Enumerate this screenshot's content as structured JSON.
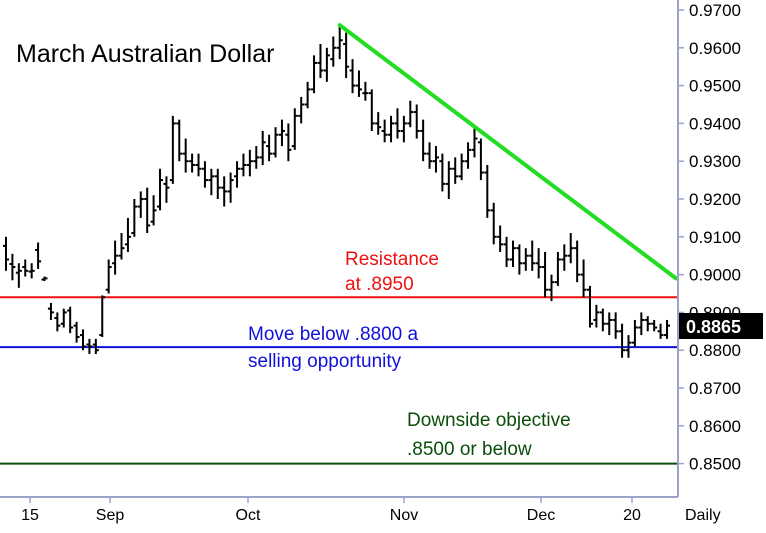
{
  "chart_data": {
    "type": "ohlc",
    "title": "March Australian Dollar",
    "period_label": "Daily",
    "ylim": [
      0.8455,
      0.97
    ],
    "y_ticks": [
      "0.9700",
      "0.9600",
      "0.9500",
      "0.9400",
      "0.9300",
      "0.9200",
      "0.9100",
      "0.9000",
      "0.8900",
      "0.8800",
      "0.8700",
      "0.8600",
      "0.8500"
    ],
    "x_ticks": [
      "15",
      "Sep",
      "Oct",
      "Nov",
      "Dec",
      "20"
    ],
    "last_price": "0.8865",
    "grid": false,
    "colors": {
      "bars": "#000000",
      "axis": "#9aa3c8",
      "trendline": "#22dd22",
      "resistance": "#ee1111",
      "support": "#1111dd",
      "objective": "#0b4d0b",
      "price_box_bg": "#000000",
      "price_box_fg": "#ffffff"
    },
    "trendline": {
      "from": 0.966,
      "to": 0.899
    },
    "levels": [
      {
        "name": "resistance",
        "value": 0.894
      },
      {
        "name": "support",
        "value": 0.8808
      },
      {
        "name": "objective",
        "value": 0.85
      }
    ],
    "annotations": [
      {
        "name": "resistance-note",
        "lines": [
          "Resistance",
          "at .8950"
        ],
        "color": "#ee1111"
      },
      {
        "name": "support-note",
        "lines": [
          "Move below .8800 a",
          "selling opportunity"
        ],
        "color": "#1111dd"
      },
      {
        "name": "objective-note",
        "lines": [
          "Downside objective",
          ".8500 or below"
        ],
        "color": "#0b4d0b"
      }
    ],
    "bars": [
      [
        0.9076,
        0.91,
        0.901,
        0.904
      ],
      [
        0.9028,
        0.9055,
        0.8985,
        0.902
      ],
      [
        0.9005,
        0.903,
        0.8965,
        0.901
      ],
      [
        0.902,
        0.904,
        0.8995,
        0.901
      ],
      [
        0.9008,
        0.903,
        0.899,
        0.901
      ],
      [
        0.9065,
        0.9085,
        0.9015,
        0.9035
      ],
      [
        0.8987,
        0.8995,
        0.8983,
        0.899
      ],
      [
        0.891,
        0.8925,
        0.888,
        0.89
      ],
      [
        0.8885,
        0.89,
        0.885,
        0.8865
      ],
      [
        0.887,
        0.891,
        0.886,
        0.89
      ],
      [
        0.8905,
        0.8915,
        0.8845,
        0.886
      ],
      [
        0.8865,
        0.8875,
        0.882,
        0.8835
      ],
      [
        0.884,
        0.8855,
        0.88,
        0.881
      ],
      [
        0.8815,
        0.883,
        0.879,
        0.881
      ],
      [
        0.8815,
        0.883,
        0.879,
        0.88
      ],
      [
        0.884,
        0.8945,
        0.8835,
        0.894
      ],
      [
        0.896,
        0.904,
        0.895,
        0.902
      ],
      [
        0.903,
        0.909,
        0.9,
        0.905
      ],
      [
        0.905,
        0.911,
        0.904,
        0.907
      ],
      [
        0.908,
        0.915,
        0.906,
        0.91
      ],
      [
        0.911,
        0.92,
        0.91,
        0.918
      ],
      [
        0.918,
        0.922,
        0.915,
        0.92
      ],
      [
        0.92,
        0.923,
        0.911,
        0.913
      ],
      [
        0.914,
        0.921,
        0.913,
        0.917
      ],
      [
        0.918,
        0.928,
        0.917,
        0.925
      ],
      [
        0.924,
        0.926,
        0.919,
        0.923
      ],
      [
        0.925,
        0.942,
        0.924,
        0.94
      ],
      [
        0.94,
        0.941,
        0.93,
        0.932
      ],
      [
        0.932,
        0.936,
        0.927,
        0.93
      ],
      [
        0.93,
        0.932,
        0.927,
        0.929
      ],
      [
        0.929,
        0.932,
        0.926,
        0.928
      ],
      [
        0.928,
        0.93,
        0.923,
        0.925
      ],
      [
        0.925,
        0.928,
        0.921,
        0.926
      ],
      [
        0.926,
        0.928,
        0.92,
        0.923
      ],
      [
        0.923,
        0.926,
        0.918,
        0.922
      ],
      [
        0.922,
        0.927,
        0.919,
        0.925
      ],
      [
        0.926,
        0.93,
        0.923,
        0.928
      ],
      [
        0.928,
        0.932,
        0.926,
        0.929
      ],
      [
        0.929,
        0.933,
        0.926,
        0.93
      ],
      [
        0.93,
        0.934,
        0.928,
        0.931
      ],
      [
        0.931,
        0.938,
        0.929,
        0.935
      ],
      [
        0.934,
        0.937,
        0.93,
        0.932
      ],
      [
        0.932,
        0.939,
        0.931,
        0.937
      ],
      [
        0.937,
        0.941,
        0.934,
        0.938
      ],
      [
        0.937,
        0.94,
        0.93,
        0.933
      ],
      [
        0.934,
        0.944,
        0.933,
        0.942
      ],
      [
        0.942,
        0.947,
        0.94,
        0.945
      ],
      [
        0.945,
        0.951,
        0.944,
        0.949
      ],
      [
        0.949,
        0.958,
        0.948,
        0.956
      ],
      [
        0.956,
        0.961,
        0.952,
        0.954
      ],
      [
        0.954,
        0.96,
        0.951,
        0.958
      ],
      [
        0.957,
        0.963,
        0.955,
        0.96
      ],
      [
        0.96,
        0.966,
        0.957,
        0.962
      ],
      [
        0.961,
        0.964,
        0.952,
        0.955
      ],
      [
        0.954,
        0.957,
        0.948,
        0.95
      ],
      [
        0.95,
        0.954,
        0.947,
        0.949
      ],
      [
        0.948,
        0.951,
        0.946,
        0.948
      ],
      [
        0.948,
        0.949,
        0.938,
        0.94
      ],
      [
        0.94,
        0.943,
        0.937,
        0.939
      ],
      [
        0.938,
        0.941,
        0.935,
        0.937
      ],
      [
        0.937,
        0.942,
        0.935,
        0.94
      ],
      [
        0.94,
        0.944,
        0.936,
        0.938
      ],
      [
        0.938,
        0.942,
        0.935,
        0.94
      ],
      [
        0.94,
        0.946,
        0.939,
        0.943
      ],
      [
        0.943,
        0.945,
        0.936,
        0.938
      ],
      [
        0.938,
        0.941,
        0.93,
        0.932
      ],
      [
        0.932,
        0.935,
        0.928,
        0.93
      ],
      [
        0.93,
        0.934,
        0.927,
        0.931
      ],
      [
        0.93,
        0.932,
        0.922,
        0.924
      ],
      [
        0.924,
        0.93,
        0.92,
        0.928
      ],
      [
        0.928,
        0.931,
        0.924,
        0.926
      ],
      [
        0.926,
        0.932,
        0.925,
        0.93
      ],
      [
        0.93,
        0.935,
        0.928,
        0.933
      ],
      [
        0.933,
        0.939,
        0.931,
        0.936
      ],
      [
        0.935,
        0.936,
        0.925,
        0.927
      ],
      [
        0.927,
        0.929,
        0.915,
        0.917
      ],
      [
        0.917,
        0.919,
        0.908,
        0.91
      ],
      [
        0.91,
        0.913,
        0.906,
        0.908
      ],
      [
        0.908,
        0.91,
        0.902,
        0.904
      ],
      [
        0.904,
        0.909,
        0.902,
        0.907
      ],
      [
        0.907,
        0.908,
        0.9,
        0.903
      ],
      [
        0.903,
        0.907,
        0.901,
        0.905
      ],
      [
        0.905,
        0.909,
        0.901,
        0.903
      ],
      [
        0.903,
        0.907,
        0.899,
        0.902
      ],
      [
        0.902,
        0.906,
        0.894,
        0.896
      ],
      [
        0.896,
        0.9,
        0.893,
        0.898
      ],
      [
        0.898,
        0.906,
        0.897,
        0.904
      ],
      [
        0.904,
        0.908,
        0.901,
        0.905
      ],
      [
        0.905,
        0.911,
        0.903,
        0.907
      ],
      [
        0.907,
        0.909,
        0.898,
        0.9
      ],
      [
        0.9,
        0.904,
        0.894,
        0.896
      ],
      [
        0.896,
        0.897,
        0.886,
        0.887
      ],
      [
        0.888,
        0.892,
        0.886,
        0.89
      ],
      [
        0.89,
        0.891,
        0.885,
        0.887
      ],
      [
        0.887,
        0.89,
        0.884,
        0.888
      ],
      [
        0.888,
        0.89,
        0.883,
        0.885
      ],
      [
        0.885,
        0.887,
        0.878,
        0.88
      ],
      [
        0.88,
        0.884,
        0.878,
        0.882
      ],
      [
        0.882,
        0.888,
        0.881,
        0.886
      ],
      [
        0.886,
        0.89,
        0.884,
        0.888
      ],
      [
        0.888,
        0.889,
        0.885,
        0.887
      ],
      [
        0.887,
        0.888,
        0.885,
        0.886
      ],
      [
        0.885,
        0.887,
        0.883,
        0.884
      ],
      [
        0.884,
        0.888,
        0.883,
        0.8865
      ]
    ]
  }
}
